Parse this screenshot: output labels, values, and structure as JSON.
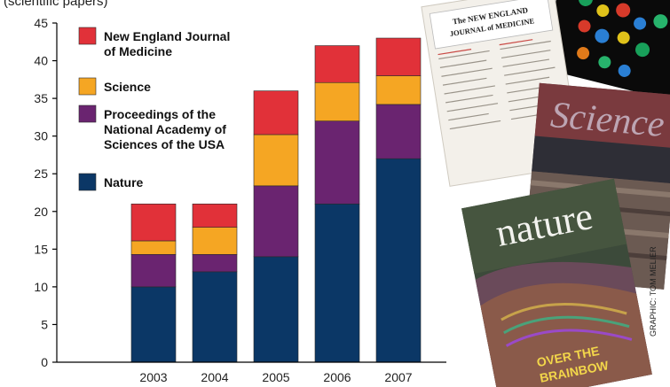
{
  "header_fragment": "(scientific papers)",
  "credit": "GRAPHIC: TOM MELIER",
  "covers": [
    {
      "name": "nejm-cover",
      "title_line1": "The NEW ENGLAND",
      "title_line2": "JOURNAL of MEDICINE"
    },
    {
      "name": "science-cover",
      "title": "Science"
    },
    {
      "name": "nature-cover",
      "title": "nature",
      "cover_line1": "OVER THE",
      "cover_line2": "BRAINBOW"
    }
  ],
  "chart_data": {
    "type": "bar",
    "stacked": true,
    "categories": [
      "2003",
      "2004",
      "2005",
      "2006",
      "2007"
    ],
    "series": [
      {
        "name": "Nature",
        "values": [
          10,
          12,
          14,
          21,
          27
        ],
        "color": "#0b3766"
      },
      {
        "name": "Proceedings of the National Academy of Sciences of the USA",
        "values": [
          4.3,
          2.3,
          9.4,
          11,
          7.2
        ],
        "color": "#6a2470"
      },
      {
        "name": "Science",
        "values": [
          1.8,
          3.6,
          6.8,
          5.1,
          3.8
        ],
        "color": "#f5a623"
      },
      {
        "name": "New England Journal of Medicine",
        "values": [
          4.9,
          3.1,
          5.8,
          4.9,
          5.0
        ],
        "color": "#e13139"
      }
    ],
    "ylim": [
      0,
      45
    ],
    "yticks": [
      0,
      5,
      10,
      15,
      20,
      25,
      30,
      35,
      40,
      45
    ],
    "xlabel": "",
    "ylabel": "",
    "grid": false,
    "legend": {
      "position": "top-left",
      "entries": [
        {
          "series": "New England Journal of Medicine",
          "lines": [
            "New England Journal",
            "of Medicine"
          ]
        },
        {
          "series": "Science",
          "lines": [
            "Science"
          ]
        },
        {
          "series": "Proceedings of the National Academy of Sciences of the USA",
          "lines": [
            "Proceedings of the",
            "National Academy of",
            "Sciences of the USA"
          ]
        },
        {
          "series": "Nature",
          "lines": [
            "Nature"
          ]
        }
      ]
    }
  }
}
